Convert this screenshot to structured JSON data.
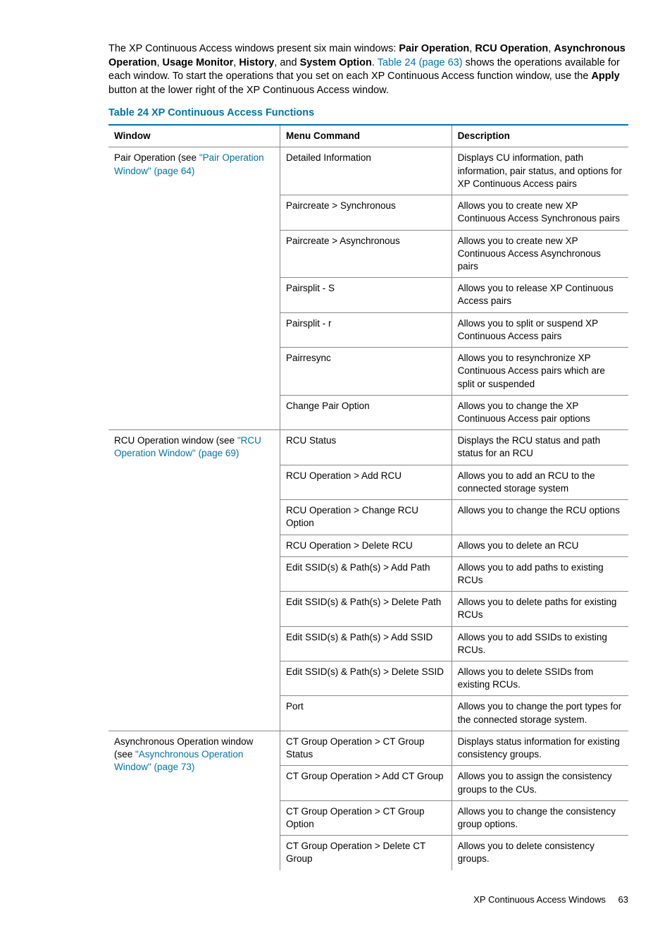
{
  "intro": {
    "pre": "The XP Continuous Access windows present six main windows: ",
    "windows": [
      "Pair Operation",
      "RCU Operation",
      "Asynchronous Operation",
      "Usage Monitor",
      "History",
      "System Option"
    ],
    "post1": ". ",
    "link": "Table 24 (page 63)",
    "post2": " shows the operations available for each window. To start the operations that you set on each XP Continuous Access function window, use the ",
    "apply": "Apply",
    "post3": " button at the lower right of the XP Continuous Access window."
  },
  "caption": "Table 24 XP Continuous Access Functions",
  "headers": {
    "window": "Window",
    "menu": "Menu Command",
    "desc": "Description"
  },
  "sections": [
    {
      "window_prefix": "Pair Operation (see ",
      "window_link": "\"Pair Operation Window\" (page 64)",
      "window_suffix": "",
      "rows": [
        {
          "menu": "Detailed Information",
          "desc": "Displays CU information, path information, pair status, and options for XP Continuous Access pairs"
        },
        {
          "menu": "Paircreate > Synchronous",
          "desc": "Allows you to create new XP Continuous Access Synchronous pairs"
        },
        {
          "menu": "Paircreate > Asynchronous",
          "desc": "Allows you to create new XP Continuous Access Asynchronous pairs"
        },
        {
          "menu": "Pairsplit - S",
          "desc": "Allows you to release XP Continuous Access pairs"
        },
        {
          "menu": "Pairsplit - r",
          "desc": "Allows you to split or suspend XP Continuous Access pairs"
        },
        {
          "menu": "Pairresync",
          "desc": "Allows you to resynchronize XP Continuous Access pairs which are split or suspended"
        },
        {
          "menu": "Change Pair Option",
          "desc": "Allows you to change the XP Continuous Access pair options"
        }
      ]
    },
    {
      "window_prefix": "RCU Operation window (see ",
      "window_link": "\"RCU Operation Window\" (page 69)",
      "window_suffix": "",
      "rows": [
        {
          "menu": "RCU Status",
          "desc": "Displays the RCU status and path status for an RCU"
        },
        {
          "menu": "RCU Operation > Add RCU",
          "desc": "Allows you to add an RCU to the connected storage system"
        },
        {
          "menu": "RCU Operation > Change RCU Option",
          "desc": "Allows you to change the RCU options"
        },
        {
          "menu": "RCU Operation > Delete RCU",
          "desc": "Allows you to delete an RCU"
        },
        {
          "menu": "Edit SSID(s) & Path(s) > Add Path",
          "desc": "Allows you to add paths to existing RCUs"
        },
        {
          "menu": "Edit SSID(s) & Path(s) > Delete Path",
          "desc": "Allows you to delete paths for existing RCUs"
        },
        {
          "menu": "Edit SSID(s) & Path(s) > Add SSID",
          "desc": "Allows you to add SSIDs to existing RCUs."
        },
        {
          "menu": "Edit SSID(s) & Path(s) > Delete SSID",
          "desc": "Allows you to delete SSIDs from existing RCUs."
        },
        {
          "menu": "Port",
          "desc": "Allows you to change the port types for the connected storage system."
        }
      ]
    },
    {
      "window_prefix": "Asynchronous Operation window (see ",
      "window_link": "\"Asynchronous Operation Window\" (page 73)",
      "window_suffix": "",
      "rows": [
        {
          "menu": "CT Group Operation > CT Group Status",
          "desc": "Displays status information for existing consistency groups."
        },
        {
          "menu": "CT Group Operation > Add CT Group",
          "desc": "Allows you to assign the consistency groups to the CUs."
        },
        {
          "menu": "CT Group Operation > CT Group Option",
          "desc": "Allows you to change the consistency group options."
        },
        {
          "menu": "CT Group Operation > Delete CT Group",
          "desc": "Allows you to delete consistency groups."
        }
      ]
    }
  ],
  "footer": {
    "title": "XP Continuous Access Windows",
    "page": "63"
  },
  "colors": {
    "accent": "#0073a8",
    "border": "#888888",
    "text": "#000000",
    "background": "#ffffff"
  }
}
